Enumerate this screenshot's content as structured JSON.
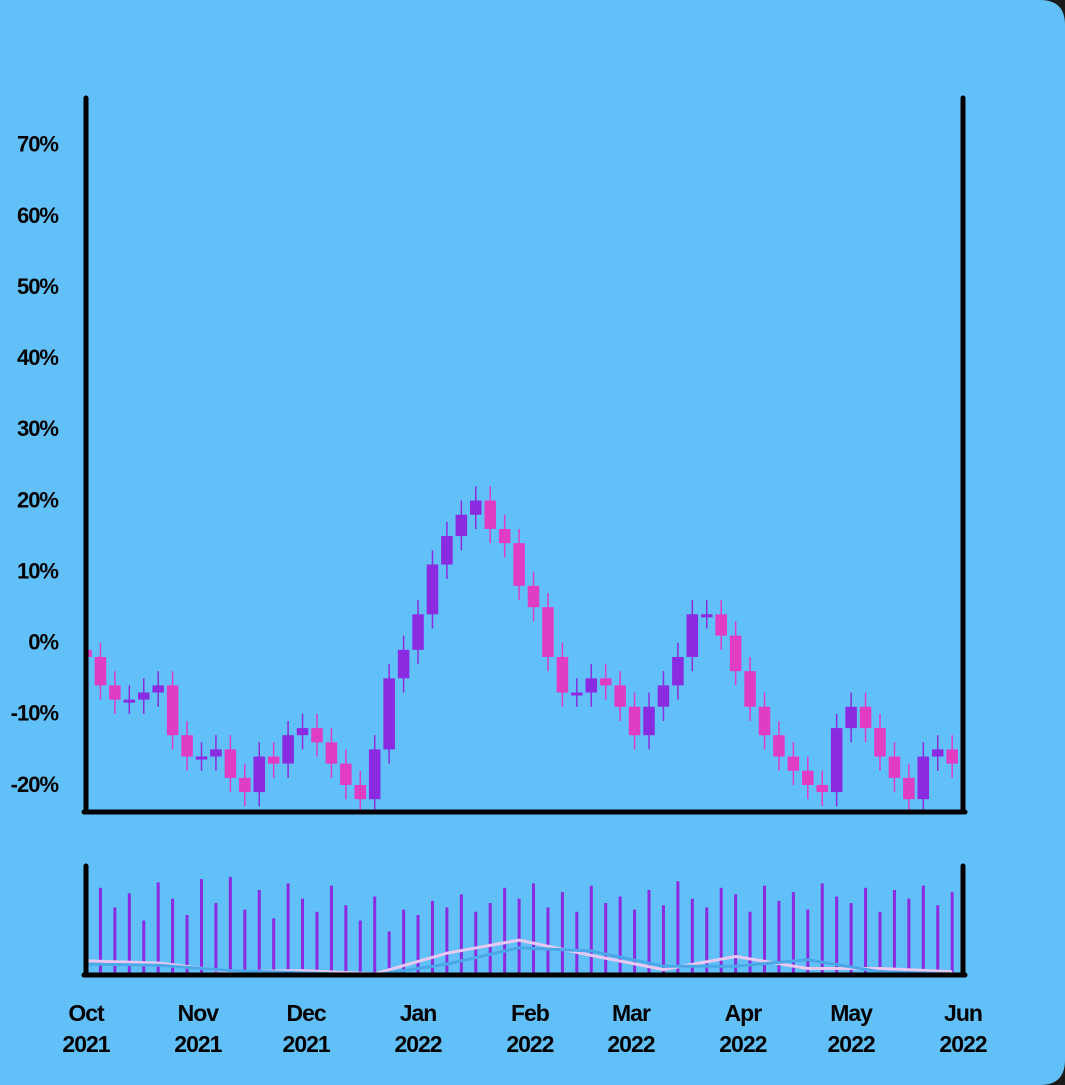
{
  "chart_data": {
    "type": "candlestick",
    "x": [
      0,
      4,
      8,
      12,
      16,
      20,
      24,
      28,
      32,
      36,
      40,
      44,
      48,
      52,
      56,
      60,
      64,
      68,
      72,
      76,
      80,
      84,
      88,
      92,
      96,
      100,
      104,
      108,
      112,
      116,
      120,
      124,
      128,
      132,
      136,
      140,
      144,
      148,
      152,
      156,
      160,
      164,
      168,
      172,
      176,
      180,
      184,
      188,
      192,
      196,
      200,
      204,
      208,
      212,
      216,
      220,
      224,
      228,
      232,
      236,
      240
    ],
    "open": [
      -1,
      -2,
      -6,
      -8,
      -8,
      -7,
      -6,
      -13,
      -16,
      -16,
      -15,
      -19,
      -21,
      -16,
      -17,
      -13,
      -12,
      -14,
      -17,
      -20,
      -22,
      -15,
      -5,
      -1,
      4,
      11,
      15,
      18,
      20,
      16,
      14,
      8,
      5,
      -2,
      -7,
      -7,
      -5,
      -6,
      -9,
      -13,
      -9,
      -6,
      -2,
      4,
      4,
      1,
      -4,
      -9,
      -13,
      -16,
      -18,
      -20,
      -21,
      -12,
      -9,
      -12,
      -16,
      -19,
      -22,
      -16,
      -15
    ],
    "high": [
      1,
      0,
      -4,
      -6,
      -5,
      -4,
      -4,
      -11,
      -14,
      -13,
      -13,
      -17,
      -14,
      -14,
      -11,
      -10,
      -10,
      -12,
      -15,
      -18,
      -13,
      -3,
      1,
      6,
      13,
      17,
      20,
      22,
      22,
      18,
      16,
      10,
      7,
      0,
      -5,
      -3,
      -3,
      -4,
      -7,
      -7,
      -4,
      0,
      6,
      6,
      6,
      3,
      -2,
      -7,
      -11,
      -14,
      -16,
      -18,
      -10,
      -7,
      -7,
      -10,
      -14,
      -17,
      -14,
      -13,
      -13
    ],
    "low": [
      -4,
      -8,
      -10,
      -10,
      -10,
      -9,
      -15,
      -18,
      -18,
      -18,
      -21,
      -23,
      -23,
      -19,
      -19,
      -15,
      -16,
      -19,
      -22,
      -24,
      -24,
      -17,
      -7,
      -3,
      2,
      9,
      13,
      16,
      14,
      12,
      6,
      3,
      -4,
      -9,
      -9,
      -9,
      -8,
      -11,
      -15,
      -15,
      -11,
      -8,
      -4,
      2,
      -1,
      -6,
      -11,
      -15,
      -18,
      -20,
      -22,
      -23,
      -23,
      -14,
      -14,
      -18,
      -21,
      -24,
      -24,
      -18,
      -19
    ],
    "close": [
      -2,
      -6,
      -8,
      -8,
      -7,
      -6,
      -13,
      -16,
      -16,
      -15,
      -19,
      -21,
      -16,
      -17,
      -13,
      -12,
      -14,
      -17,
      -20,
      -22,
      -15,
      -5,
      -1,
      4,
      11,
      15,
      18,
      20,
      16,
      14,
      8,
      5,
      -2,
      -7,
      -7,
      -5,
      -6,
      -9,
      -13,
      -9,
      -6,
      -2,
      4,
      4,
      1,
      -4,
      -9,
      -13,
      -16,
      -18,
      -20,
      -21,
      -12,
      -9,
      -12,
      -16,
      -19,
      -22,
      -16,
      -15,
      -17
    ],
    "up_color": "#8a2be2",
    "down_color": "#e03cc4",
    "xlim": [
      0,
      243
    ],
    "xticks": [
      {
        "value": 0,
        "label": "Oct\n2021"
      },
      {
        "value": 31,
        "label": "Nov\n2021"
      },
      {
        "value": 61,
        "label": "Dec\n2021"
      },
      {
        "value": 92,
        "label": "Jan\n2022"
      },
      {
        "value": 123,
        "label": "Feb\n2022"
      },
      {
        "value": 151,
        "label": "Mar\n2022"
      },
      {
        "value": 182,
        "label": "Apr\n2022"
      },
      {
        "value": 212,
        "label": "May\n2022"
      },
      {
        "value": 243,
        "label": "Jun\n2022"
      }
    ],
    "ylim": [
      -23.8,
      76.6
    ],
    "yticks": [
      {
        "value": -20,
        "label": "-20%"
      },
      {
        "value": -10,
        "label": "-10%"
      },
      {
        "value": 0,
        "label": "0%"
      },
      {
        "value": 10,
        "label": "10%"
      },
      {
        "value": 20,
        "label": "20%"
      },
      {
        "value": 30,
        "label": "30%"
      },
      {
        "value": 40,
        "label": "40%"
      },
      {
        "value": 50,
        "label": "50%"
      },
      {
        "value": 60,
        "label": "60%"
      },
      {
        "value": 70,
        "label": "70%"
      }
    ],
    "volume": {
      "color": "#8a2be2",
      "ylim": [
        0,
        100
      ],
      "values": [
        45,
        80,
        62,
        75,
        50,
        85,
        70,
        55,
        88,
        66,
        90,
        60,
        78,
        52,
        84,
        70,
        58,
        82,
        64,
        50,
        72,
        40,
        60,
        55,
        68,
        62,
        74,
        58,
        66,
        80,
        70,
        84,
        62,
        76,
        58,
        82,
        66,
        72,
        60,
        78,
        64,
        86,
        70,
        62,
        80,
        74,
        58,
        82,
        68,
        76,
        60,
        84,
        72,
        66,
        80,
        58,
        78,
        70,
        82,
        64,
        76
      ],
      "series": [
        {
          "color": "#e8c8f0",
          "x": [
            0,
            20,
            40,
            60,
            80,
            100,
            120,
            140,
            160,
            180,
            200,
            220,
            240
          ],
          "values": [
            13,
            11,
            3,
            4,
            1,
            20,
            32,
            18,
            5,
            17,
            6,
            6,
            3
          ]
        },
        {
          "color": "#4aa8e8",
          "x": [
            0,
            20,
            40,
            60,
            80,
            100,
            120,
            140,
            160,
            180,
            200,
            220,
            240
          ],
          "values": [
            10,
            9,
            4,
            2,
            0,
            10,
            25,
            22,
            8,
            8,
            14,
            3,
            1
          ]
        }
      ]
    }
  }
}
